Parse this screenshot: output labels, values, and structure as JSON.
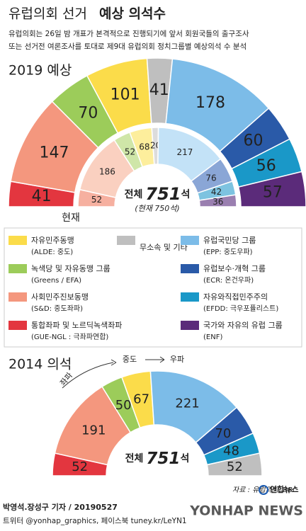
{
  "header": {
    "title_light": "유럽의회 선거",
    "title_bold": "예상 의석수",
    "subtitle": [
      "유럽의회는 26일 밤 개표가 본격적으로 진행되기에 앞서 회원국들의 출구조사",
      "또는 선거전 여론조사를 토대로 제9대 유럽의회 정치그룹별 예상의석 수 분석"
    ]
  },
  "legend": [
    {
      "name": "통합좌파 및 노르딕녹색좌파",
      "note": "(GUE-NGL : 극좌파연합)",
      "color": "#e3363f"
    },
    {
      "name": "사회민주진보동맹",
      "note": "(S&D: 중도좌파)",
      "color": "#f4977e"
    },
    {
      "name": "녹색당 및 자유동맹 그룹",
      "note": "(Greens / EFA)",
      "color": "#9ccc5a"
    },
    {
      "name": "자유민주동맹",
      "note": "(ALDE: 중도)",
      "color": "#fbdc4a"
    },
    {
      "name": "무소속 및 기타",
      "color": "#bfbfbf"
    },
    {
      "name": "유럽국민당 그룹",
      "note": "(EPP: 중도우파)",
      "color": "#7cbce8"
    },
    {
      "name": "유럽보수·개혁 그룹",
      "note": "(ECR: 온건우파)",
      "color": "#2a5aa8"
    },
    {
      "name": "자유와직접민주주의",
      "note": "(EFDD: 극우포퓰리스트)",
      "color": "#1a98c8"
    },
    {
      "name": "국가와 자유의 유럽 그룹",
      "note": "(ENF)",
      "color": "#5b2b7a"
    }
  ],
  "chart_data": [
    {
      "type": "semicircle",
      "title": "2019 예상",
      "total_label": "전체",
      "total": 751,
      "total_unit": "석",
      "note": "(현재 750석)",
      "inner_label": "현재",
      "rings": [
        {
          "name": "2019 예상",
          "values": [
            41,
            147,
            70,
            101,
            41,
            178,
            60,
            56,
            57
          ],
          "colors": [
            "#e3363f",
            "#f4977e",
            "#9ccc5a",
            "#fbdc4a",
            "#bfbfbf",
            "#7cbce8",
            "#2a5aa8",
            "#1a98c8",
            "#5b2b7a"
          ],
          "label_colors": [
            "#fff",
            "#222",
            "#222",
            "#222",
            "#222",
            "#fff",
            "#fff",
            "#fff",
            "#fff"
          ]
        },
        {
          "name": "현재",
          "values": [
            52,
            186,
            52,
            68,
            20,
            217,
            76,
            42,
            36
          ],
          "colors": [
            "#f6b0a0",
            "#fad0c0",
            "#cfe6a8",
            "#fdee9c",
            "#dcdcdc",
            "#c3e2f7",
            "#8aa6d6",
            "#7dc3e0",
            "#9a7fb0"
          ],
          "label_colors": [
            "#222",
            "#222",
            "#222",
            "#222",
            "#222",
            "#fff",
            "#fff",
            "#fff",
            "#fff"
          ]
        }
      ]
    },
    {
      "type": "semicircle",
      "title": "2014 의석",
      "total_label": "전체",
      "total": 751,
      "total_unit": "석",
      "direction_labels": [
        "좌파",
        "중도",
        "우파"
      ],
      "rings": [
        {
          "name": "2014 의석",
          "values": [
            52,
            191,
            50,
            67,
            221,
            70,
            48,
            52
          ],
          "colors": [
            "#e3363f",
            "#f4977e",
            "#9ccc5a",
            "#fbdc4a",
            "#7cbce8",
            "#2a5aa8",
            "#1a98c8",
            "#bfbfbf"
          ],
          "label_colors": [
            "#fff",
            "#222",
            "#222",
            "#222",
            "#fff",
            "#fff",
            "#fff",
            "#222"
          ]
        }
      ]
    }
  ],
  "footer": {
    "source": "자료 : 유럽의회, BBC",
    "byline": "박영석.장성구 기자 / 20190527",
    "sns": "트위터 @yonhap_graphics, 페이스북 tuney.kr/LeYN1",
    "logo": "연합뉴스",
    "watermark": "YONHAP NEWS"
  }
}
